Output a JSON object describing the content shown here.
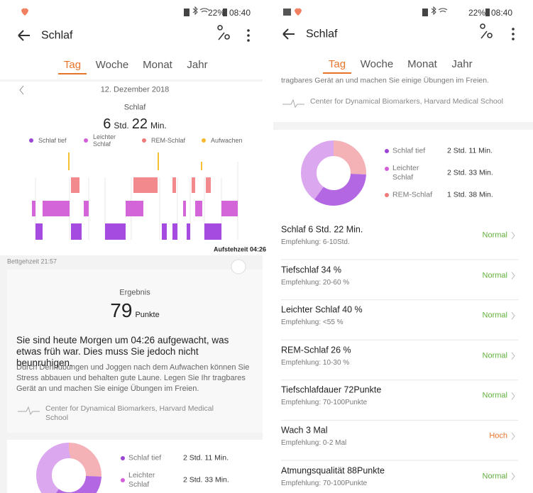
{
  "screens": [
    {
      "status": {
        "battery": "22%",
        "time": "08:40"
      },
      "toolbar": {
        "title": "Schlaf"
      },
      "tabs": [
        "Tag",
        "Woche",
        "Monat",
        "Jahr"
      ],
      "date": "12. Dezember 2018",
      "summary": {
        "label": "Schlaf",
        "hours": "6",
        "hours_unit": "Std.",
        "minutes": "22",
        "minutes_unit": "Min."
      },
      "legend": [
        "Schlaf tief",
        "Leichter Schlaf",
        "REM-Schlaf",
        "Aufwachen"
      ],
      "wake_time": "Aufstehzeit 04:26",
      "bed_time": "Bettgehzeit 21:57",
      "result": {
        "label": "Ergebnis",
        "score": "79",
        "unit": "Punkte",
        "headline": "Sie sind heute Morgen um 04:26 aufgewacht, was etwas früh war. Dies muss Sie jedoch nicht beunruhigen.",
        "body": "Durch Dehnübungen und Joggen nach dem Aufwachen können Sie Stress abbauen und behalten gute Laune. Legen Sie Ihr tragbares Gerät an und machen Sie einige Übungen im Freien.",
        "source": "Center for Dynamical Biomarkers, Harvard Medical School"
      },
      "breakdown": [
        {
          "label": "Schlaf tief",
          "value": "2 Std. 11 Min."
        },
        {
          "label": "Leichter Schlaf",
          "value": "2 Std. 33 Min."
        }
      ]
    },
    {
      "status": {
        "battery": "22%",
        "time": "08:40"
      },
      "toolbar": {
        "title": "Schlaf"
      },
      "tabs": [
        "Tag",
        "Woche",
        "Monat",
        "Jahr"
      ],
      "partial_text": "tragbares Gerät an und machen Sie einige Übungen im Freien.",
      "source": "Center for Dynamical Biomarkers, Harvard Medical School",
      "breakdown": [
        {
          "label": "Schlaf tief",
          "value": "2 Std. 11 Min."
        },
        {
          "label": "Leichter Schlaf",
          "value": "2 Std. 33 Min."
        },
        {
          "label": "REM-Schlaf",
          "value": "1 Std. 38 Min."
        }
      ],
      "metrics": [
        {
          "title": "Schlaf  6 Std. 22 Min.",
          "recommendation": "Empfehlung: 6-10Std.",
          "rating": "Normal",
          "color": "#62b03c"
        },
        {
          "title": "Tiefschlaf  34 %",
          "recommendation": "Empfehlung: 20-60 %",
          "rating": "Normal",
          "color": "#62b03c"
        },
        {
          "title": "Leichter Schlaf  40 %",
          "recommendation": "Empfehlung: <55 %",
          "rating": "Normal",
          "color": "#62b03c"
        },
        {
          "title": "REM-Schlaf  26 %",
          "recommendation": "Empfehlung: 10-30 %",
          "rating": "Normal",
          "color": "#62b03c"
        },
        {
          "title": "Tiefschlafdauer  72Punkte",
          "recommendation": "Empfehlung: 70-100Punkte",
          "rating": "Normal",
          "color": "#62b03c"
        },
        {
          "title": "Wach  3 Mal",
          "recommendation": "Empfehlung: 0-2 Mal",
          "rating": "Hoch",
          "color": "#e8742a"
        },
        {
          "title": "Atmungsqualität  88Punkte",
          "recommendation": "Empfehlung: 70-100Punkte",
          "rating": "Normal",
          "color": "#62b03c"
        }
      ]
    }
  ]
}
